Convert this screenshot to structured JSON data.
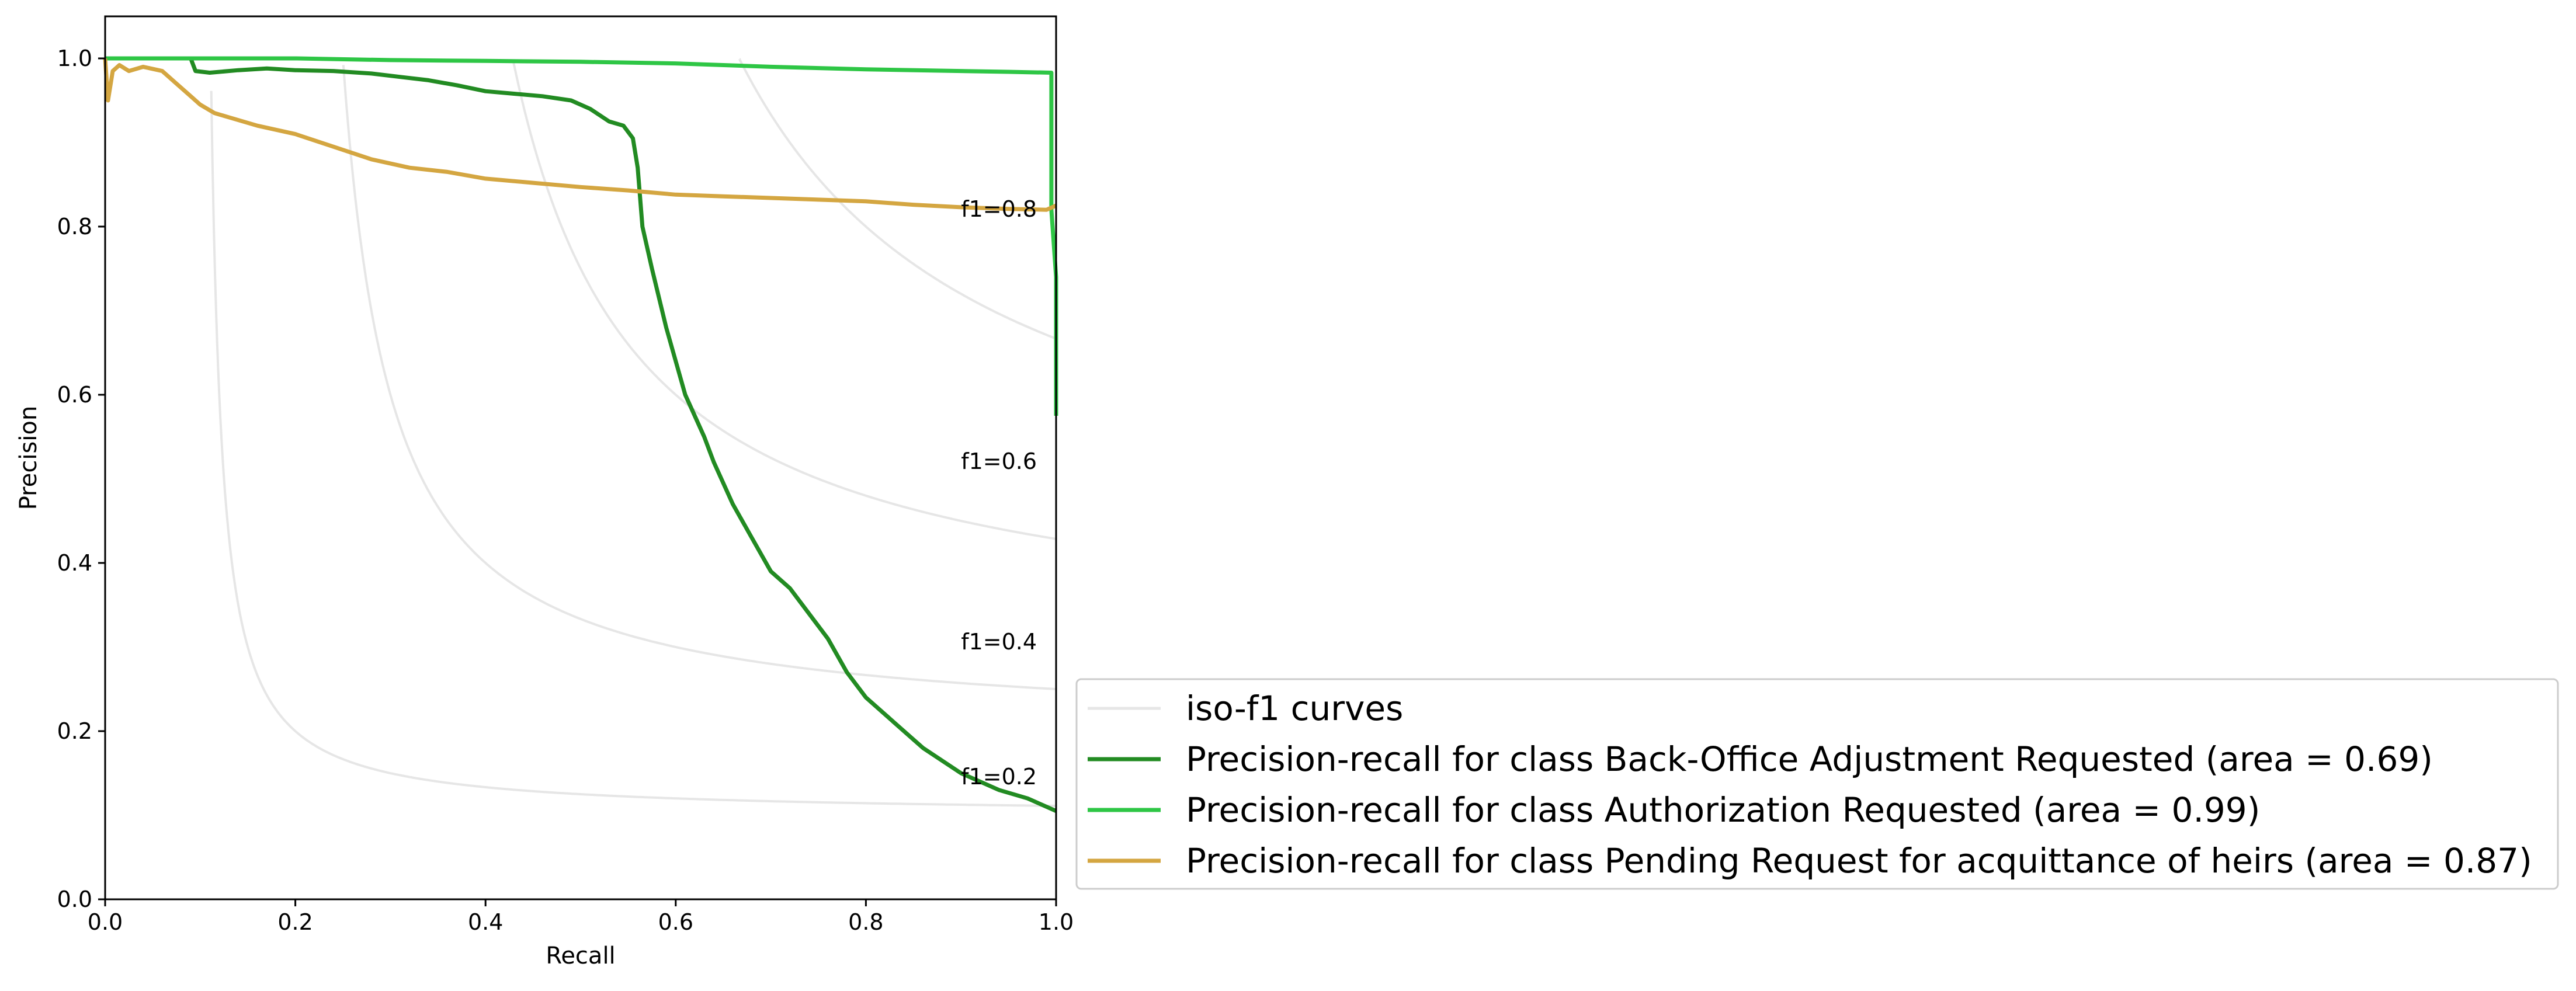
{
  "chart_data": {
    "type": "line",
    "title": "",
    "xlabel": "Recall",
    "ylabel": "Precision",
    "xlim": [
      0.0,
      1.0
    ],
    "ylim": [
      0.0,
      1.05
    ],
    "x_ticks": [
      "0.0",
      "0.2",
      "0.4",
      "0.6",
      "0.8",
      "1.0"
    ],
    "y_ticks": [
      "0.0",
      "0.2",
      "0.4",
      "0.6",
      "0.8",
      "1.0"
    ],
    "grid": false,
    "legend_placement": "lower-right-outside",
    "iso_f1": {
      "legend_label": "iso-f1 curves",
      "color": "#e6e6e6",
      "values": [
        0.2,
        0.4,
        0.6,
        0.8
      ],
      "labels": [
        "f1=0.2",
        "f1=0.4",
        "f1=0.6",
        "f1=0.8"
      ]
    },
    "series": [
      {
        "name": "Precision-recall for class Back-Office Adjustment Requested (area = 0.69)",
        "color": "#228b22",
        "points": [
          [
            0.09,
            1.0
          ],
          [
            0.095,
            0.985
          ],
          [
            0.11,
            0.983
          ],
          [
            0.14,
            0.986
          ],
          [
            0.17,
            0.988
          ],
          [
            0.2,
            0.986
          ],
          [
            0.24,
            0.985
          ],
          [
            0.28,
            0.982
          ],
          [
            0.31,
            0.978
          ],
          [
            0.34,
            0.974
          ],
          [
            0.37,
            0.968
          ],
          [
            0.4,
            0.961
          ],
          [
            0.43,
            0.958
          ],
          [
            0.46,
            0.955
          ],
          [
            0.49,
            0.95
          ],
          [
            0.51,
            0.94
          ],
          [
            0.53,
            0.925
          ],
          [
            0.545,
            0.92
          ],
          [
            0.555,
            0.905
          ],
          [
            0.56,
            0.87
          ],
          [
            0.565,
            0.8
          ],
          [
            0.575,
            0.75
          ],
          [
            0.59,
            0.68
          ],
          [
            0.6,
            0.64
          ],
          [
            0.61,
            0.6
          ],
          [
            0.63,
            0.55
          ],
          [
            0.64,
            0.52
          ],
          [
            0.66,
            0.47
          ],
          [
            0.68,
            0.43
          ],
          [
            0.7,
            0.39
          ],
          [
            0.72,
            0.37
          ],
          [
            0.74,
            0.34
          ],
          [
            0.76,
            0.31
          ],
          [
            0.78,
            0.27
          ],
          [
            0.8,
            0.24
          ],
          [
            0.83,
            0.21
          ],
          [
            0.86,
            0.18
          ],
          [
            0.9,
            0.15
          ],
          [
            0.94,
            0.13
          ],
          [
            0.97,
            0.12
          ],
          [
            0.99,
            0.11
          ],
          [
            1.0,
            0.105
          ]
        ]
      },
      {
        "name": "Precision-recall for class Authorization Requested (area = 0.99)",
        "color": "#2ec645",
        "points": [
          [
            0.0,
            1.0
          ],
          [
            0.1,
            1.0
          ],
          [
            0.2,
            1.0
          ],
          [
            0.3,
            0.998
          ],
          [
            0.4,
            0.997
          ],
          [
            0.5,
            0.996
          ],
          [
            0.6,
            0.994
          ],
          [
            0.7,
            0.99
          ],
          [
            0.8,
            0.987
          ],
          [
            0.9,
            0.985
          ],
          [
            0.95,
            0.984
          ],
          [
            0.995,
            0.983
          ],
          [
            0.995,
            0.82
          ],
          [
            1.0,
            0.74
          ],
          [
            1.0,
            0.575
          ]
        ]
      },
      {
        "name": "Precision-recall for class Pending Request for acquittance of heirs (area = 0.87)",
        "color": "#d4a641",
        "points": [
          [
            0.0,
            1.0
          ],
          [
            0.003,
            0.95
          ],
          [
            0.008,
            0.985
          ],
          [
            0.015,
            0.992
          ],
          [
            0.025,
            0.985
          ],
          [
            0.04,
            0.99
          ],
          [
            0.06,
            0.985
          ],
          [
            0.075,
            0.97
          ],
          [
            0.09,
            0.955
          ],
          [
            0.1,
            0.945
          ],
          [
            0.115,
            0.935
          ],
          [
            0.13,
            0.93
          ],
          [
            0.16,
            0.92
          ],
          [
            0.2,
            0.91
          ],
          [
            0.24,
            0.895
          ],
          [
            0.28,
            0.88
          ],
          [
            0.32,
            0.87
          ],
          [
            0.36,
            0.865
          ],
          [
            0.4,
            0.857
          ],
          [
            0.45,
            0.852
          ],
          [
            0.5,
            0.847
          ],
          [
            0.55,
            0.843
          ],
          [
            0.6,
            0.838
          ],
          [
            0.65,
            0.836
          ],
          [
            0.7,
            0.834
          ],
          [
            0.75,
            0.832
          ],
          [
            0.8,
            0.83
          ],
          [
            0.85,
            0.826
          ],
          [
            0.9,
            0.823
          ],
          [
            0.95,
            0.821
          ],
          [
            0.99,
            0.82
          ],
          [
            1.0,
            0.825
          ]
        ]
      }
    ]
  }
}
